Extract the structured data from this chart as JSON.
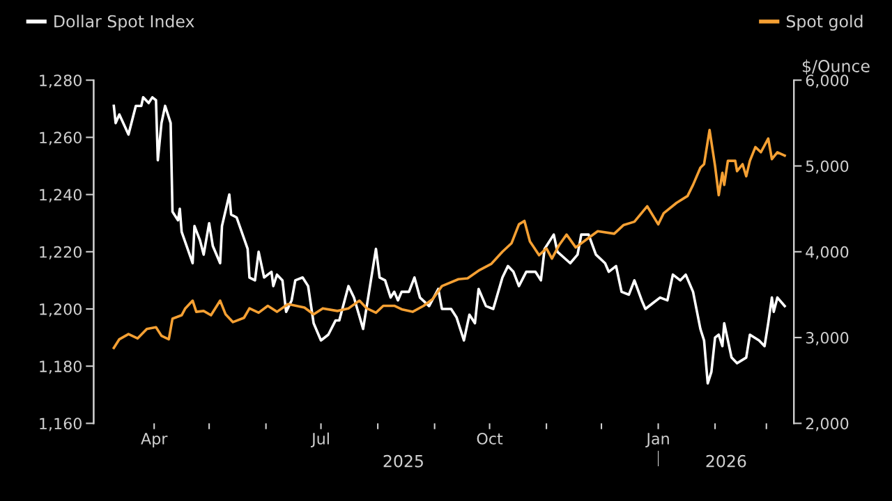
{
  "chart_data": {
    "type": "line",
    "legend": "top",
    "grid": false,
    "y2label": "$/Ounce",
    "xlim": [
      "2025-02-27",
      "2026-03-16"
    ],
    "xticks": [
      {
        "value": "2025-04-01",
        "label": "Apr"
      },
      {
        "value": "2025-05-01",
        "label": null
      },
      {
        "value": "2025-06-01",
        "label": null
      },
      {
        "value": "2025-07-01",
        "label": "Jul"
      },
      {
        "value": "2025-08-01",
        "label": null
      },
      {
        "value": "2025-09-01",
        "label": null
      },
      {
        "value": "2025-10-01",
        "label": "Oct"
      },
      {
        "value": "2025-11-01",
        "label": null
      },
      {
        "value": "2025-12-01",
        "label": null
      },
      {
        "value": "2026-01-01",
        "label": "Jan"
      },
      {
        "value": "2026-02-01",
        "label": null
      },
      {
        "value": "2026-03-01",
        "label": null
      }
    ],
    "x2lim": [
      "2025-02-27",
      "2026-03-16"
    ],
    "x2ticks": [
      {
        "value": "2025-08-15",
        "label": "2025"
      },
      {
        "value": "2026-01-01",
        "label": null
      },
      {
        "value": "2026-02-07",
        "label": "2026"
      }
    ],
    "ylim": [
      1160,
      1280
    ],
    "yticks": [
      {
        "value": 1160,
        "label": "1,160"
      },
      {
        "value": 1180,
        "label": "1,180"
      },
      {
        "value": 1200,
        "label": "1,200"
      },
      {
        "value": 1220,
        "label": "1,220"
      },
      {
        "value": 1240,
        "label": "1,240"
      },
      {
        "value": 1260,
        "label": "1,260"
      },
      {
        "value": 1280,
        "label": "1,280"
      }
    ],
    "y2lim": [
      2000,
      6000
    ],
    "y2ticks": [
      {
        "value": 2000,
        "label": "2,000"
      },
      {
        "value": 3000,
        "label": "3,000"
      },
      {
        "value": 4000,
        "label": "4,000"
      },
      {
        "value": 5000,
        "label": "5,000"
      },
      {
        "value": 6000,
        "label": "6,000"
      }
    ],
    "series": [
      {
        "name": "Dollar Spot Index",
        "color": "#ffffff",
        "axis": "y",
        "x": [
          "2025-03-10",
          "2025-03-11",
          "2025-03-13",
          "2025-03-18",
          "2025-03-22",
          "2025-03-25",
          "2025-03-26",
          "2025-03-29",
          "2025-03-31",
          "2025-04-02",
          "2025-04-03",
          "2025-04-05",
          "2025-04-07",
          "2025-04-10",
          "2025-04-11",
          "2025-04-14",
          "2025-04-15",
          "2025-04-16",
          "2025-04-22",
          "2025-04-23",
          "2025-04-26",
          "2025-04-28",
          "2025-05-01",
          "2025-05-03",
          "2025-05-07",
          "2025-05-08",
          "2025-05-12",
          "2025-05-13",
          "2025-05-16",
          "2025-05-22",
          "2025-05-23",
          "2025-05-26",
          "2025-05-28",
          "2025-05-31",
          "2025-06-04",
          "2025-06-05",
          "2025-06-07",
          "2025-06-10",
          "2025-06-12",
          "2025-06-15",
          "2025-06-17",
          "2025-06-21",
          "2025-06-24",
          "2025-06-27",
          "2025-07-01",
          "2025-07-05",
          "2025-07-09",
          "2025-07-11",
          "2025-07-16",
          "2025-07-19",
          "2025-07-24",
          "2025-07-31",
          "2025-08-02",
          "2025-08-05",
          "2025-08-08",
          "2025-08-10",
          "2025-08-12",
          "2025-08-14",
          "2025-08-18",
          "2025-08-21",
          "2025-08-24",
          "2025-08-29",
          "2025-09-03",
          "2025-09-05",
          "2025-09-10",
          "2025-09-13",
          "2025-09-17",
          "2025-09-20",
          "2025-09-23",
          "2025-09-25",
          "2025-09-29",
          "2025-10-03",
          "2025-10-08",
          "2025-10-11",
          "2025-10-14",
          "2025-10-17",
          "2025-10-21",
          "2025-10-26",
          "2025-10-29",
          "2025-10-31",
          "2025-11-05",
          "2025-11-07",
          "2025-11-14",
          "2025-11-18",
          "2025-11-20",
          "2025-11-24",
          "2025-11-28",
          "2025-12-03",
          "2025-12-05",
          "2025-12-09",
          "2025-12-12",
          "2025-12-16",
          "2025-12-19",
          "2025-12-23",
          "2025-12-25",
          "2025-12-29",
          "2026-01-02",
          "2026-01-06",
          "2026-01-09",
          "2026-01-13",
          "2026-01-16",
          "2026-01-20",
          "2026-01-24",
          "2026-01-26",
          "2026-01-28",
          "2026-01-30",
          "2026-02-01",
          "2026-02-03",
          "2026-02-05",
          "2026-02-06",
          "2026-02-10",
          "2026-02-13",
          "2026-02-18",
          "2026-02-20",
          "2026-02-25",
          "2026-02-28",
          "2026-03-02",
          "2026-03-04",
          "2026-03-05",
          "2026-03-07",
          "2026-03-11"
        ],
        "values": [
          1271,
          1265,
          1268,
          1261,
          1271,
          1271,
          1274,
          1272,
          1274,
          1273,
          1252,
          1265,
          1271,
          1265,
          1234,
          1231,
          1235,
          1227,
          1216,
          1229,
          1224,
          1219,
          1230,
          1222,
          1216,
          1229,
          1240,
          1233,
          1232,
          1221,
          1211,
          1210,
          1220,
          1211,
          1213,
          1208,
          1212,
          1210,
          1199,
          1203,
          1210,
          1211,
          1208,
          1195,
          1189,
          1191,
          1196,
          1196,
          1208,
          1204,
          1193,
          1221,
          1211,
          1210,
          1204,
          1206,
          1203,
          1206,
          1206,
          1211,
          1204,
          1201,
          1207,
          1200,
          1200,
          1197,
          1189,
          1198,
          1195,
          1207,
          1201,
          1200,
          1211,
          1215,
          1213,
          1208,
          1213,
          1213,
          1210,
          1221,
          1226,
          1220,
          1216,
          1219,
          1226,
          1226,
          1219,
          1216,
          1213,
          1215,
          1206,
          1205,
          1210,
          1203,
          1200,
          1202,
          1204,
          1203,
          1212,
          1210,
          1212,
          1206,
          1193,
          1189,
          1174,
          1178,
          1190,
          1191,
          1187,
          1195,
          1183,
          1181,
          1183,
          1191,
          1189,
          1187,
          1195,
          1204,
          1199,
          1204,
          1201
        ]
      },
      {
        "name": "Spot gold",
        "color": "#f5a033",
        "axis": "y2",
        "x": [
          "2025-03-10",
          "2025-03-13",
          "2025-03-18",
          "2025-03-23",
          "2025-03-28",
          "2025-04-02",
          "2025-04-05",
          "2025-04-09",
          "2025-04-11",
          "2025-04-16",
          "2025-04-18",
          "2025-04-22",
          "2025-04-24",
          "2025-04-28",
          "2025-05-02",
          "2025-05-07",
          "2025-05-10",
          "2025-05-14",
          "2025-05-20",
          "2025-05-23",
          "2025-05-28",
          "2025-06-02",
          "2025-06-07",
          "2025-06-13",
          "2025-06-22",
          "2025-06-27",
          "2025-07-02",
          "2025-07-10",
          "2025-07-16",
          "2025-07-22",
          "2025-07-26",
          "2025-07-31",
          "2025-08-04",
          "2025-08-10",
          "2025-08-14",
          "2025-08-20",
          "2025-08-26",
          "2025-08-31",
          "2025-09-05",
          "2025-09-14",
          "2025-09-19",
          "2025-09-25",
          "2025-10-02",
          "2025-10-08",
          "2025-10-13",
          "2025-10-17",
          "2025-10-20",
          "2025-10-23",
          "2025-10-28",
          "2025-11-01",
          "2025-11-04",
          "2025-11-08",
          "2025-11-12",
          "2025-11-17",
          "2025-11-22",
          "2025-11-29",
          "2025-12-08",
          "2025-12-13",
          "2025-12-19",
          "2025-12-26",
          "2026-01-01",
          "2026-01-04",
          "2026-01-11",
          "2026-01-17",
          "2026-01-20",
          "2026-01-24",
          "2026-01-26",
          "2026-01-29",
          "2026-02-01",
          "2026-02-03",
          "2026-02-05",
          "2026-02-06",
          "2026-02-08",
          "2026-02-12",
          "2026-02-13",
          "2026-02-16",
          "2026-02-18",
          "2026-02-20",
          "2026-02-23",
          "2026-02-26",
          "2026-03-02",
          "2026-03-04",
          "2026-03-07",
          "2026-03-11"
        ],
        "values": [
          2880,
          2980,
          3040,
          2990,
          3100,
          3120,
          3020,
          2980,
          3220,
          3260,
          3340,
          3430,
          3300,
          3310,
          3260,
          3430,
          3270,
          3180,
          3230,
          3340,
          3290,
          3370,
          3300,
          3390,
          3350,
          3270,
          3340,
          3310,
          3340,
          3430,
          3340,
          3290,
          3370,
          3370,
          3330,
          3300,
          3370,
          3450,
          3600,
          3680,
          3690,
          3780,
          3860,
          4000,
          4100,
          4320,
          4360,
          4120,
          3960,
          4040,
          3920,
          4080,
          4200,
          4050,
          4130,
          4240,
          4210,
          4310,
          4350,
          4530,
          4320,
          4450,
          4570,
          4650,
          4780,
          4980,
          5020,
          5420,
          5000,
          4660,
          4920,
          4780,
          5060,
          5060,
          4940,
          5020,
          4880,
          5060,
          5220,
          5160,
          5320,
          5080,
          5160,
          5120
        ]
      }
    ]
  }
}
